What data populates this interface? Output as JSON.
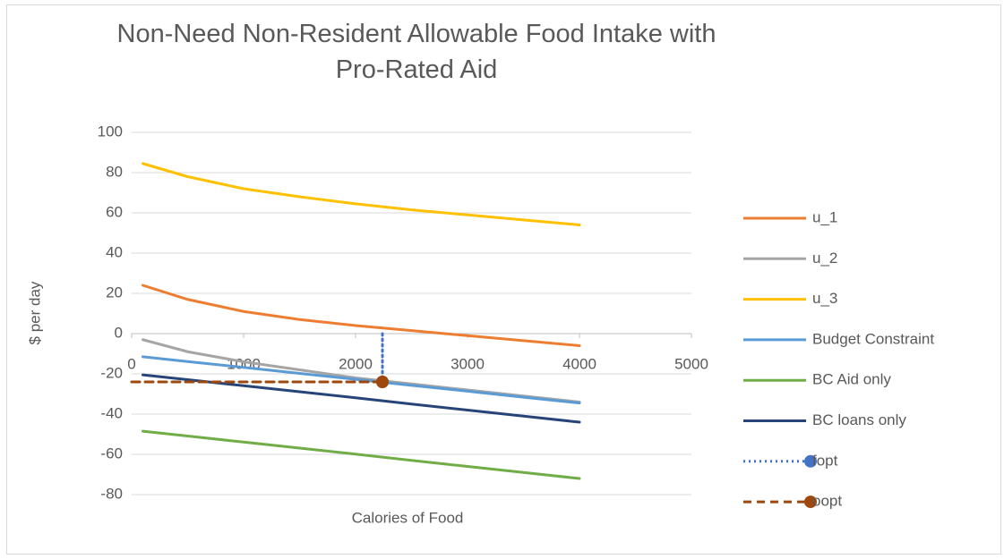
{
  "chart_data": {
    "type": "line",
    "title": "Non-Need Non-Resident Allowable Food Intake with Pro-Rated Aid",
    "x_label": "Calories of Food",
    "y_label": "$ per day",
    "x": [
      100,
      500,
      1000,
      1500,
      2000,
      2500,
      3000,
      3500,
      4000
    ],
    "series": [
      {
        "name": "u_1",
        "color": "#ED7D31",
        "values": [
          24,
          17,
          11,
          7,
          4,
          1.5,
          -1,
          -3.5,
          -6
        ]
      },
      {
        "name": "u_2",
        "color": "#A5A5A5",
        "values": [
          -3,
          -9,
          -14,
          -18,
          -22,
          -25,
          -28,
          -31,
          -34
        ]
      },
      {
        "name": "u_3",
        "color": "#FFC000",
        "values": [
          84.5,
          78,
          72,
          68,
          64.5,
          61.5,
          59,
          56.5,
          54
        ]
      },
      {
        "name": "Budget Constraint",
        "color": "#5B9BD5",
        "values": [
          -11.5,
          -13.9,
          -16.8,
          -19.8,
          -22.7,
          -25.7,
          -28.6,
          -31.6,
          -34.5
        ]
      },
      {
        "name": "BC Aid only",
        "color": "#70AD47",
        "values": [
          -48.5,
          -50.9,
          -53.9,
          -56.9,
          -59.9,
          -63,
          -66,
          -69,
          -72
        ]
      },
      {
        "name": "BC loans only",
        "color": "#264478",
        "values": [
          -20.5,
          -22.9,
          -25.9,
          -28.9,
          -31.9,
          -35,
          -38,
          -41,
          -44
        ]
      },
      {
        "name": "fopt",
        "color": "#4472C4",
        "dash": "dotted",
        "marker": true,
        "x": [
          2240,
          2240
        ],
        "values": [
          0,
          -24
        ]
      },
      {
        "name": "oopt",
        "color": "#9E480E",
        "dash": "dashed",
        "marker": true,
        "x": [
          0,
          2240
        ],
        "values": [
          -24,
          -24
        ]
      }
    ],
    "xlim": [
      0,
      5000
    ],
    "xticks": [
      0,
      1000,
      2000,
      3000,
      4000,
      5000
    ],
    "ylim": [
      -80,
      100
    ],
    "yticks": [
      -80,
      -60,
      -40,
      -20,
      0,
      20,
      40,
      60,
      80,
      100
    ],
    "grid": true,
    "legend": "right"
  }
}
